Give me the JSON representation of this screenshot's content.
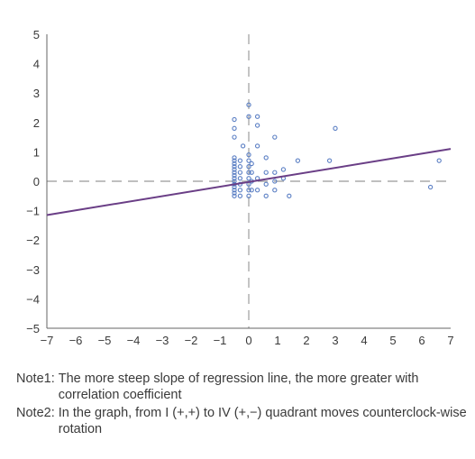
{
  "chart_data": {
    "type": "scatter",
    "title": "",
    "xlabel": "",
    "ylabel": "",
    "xlim": [
      -7,
      7
    ],
    "ylim": [
      -5,
      5
    ],
    "x_ticks": [
      "−7",
      "−6",
      "−5",
      "−4",
      "−3",
      "−2",
      "−1",
      "0",
      "1",
      "2",
      "3",
      "4",
      "5",
      "6",
      "7"
    ],
    "y_ticks": [
      "5",
      "4",
      "3",
      "2",
      "1",
      "0",
      "−1",
      "−2",
      "−3",
      "−4",
      "−5"
    ],
    "grid": false,
    "reference_lines": [
      {
        "orientation": "horizontal",
        "value": 0,
        "style": "dashed"
      },
      {
        "orientation": "vertical",
        "value": 0,
        "style": "dashed"
      }
    ],
    "regression_line": {
      "x": [
        -7,
        7
      ],
      "y": [
        -1.15,
        1.1
      ]
    },
    "colors": {
      "points": "#5b7fc4",
      "regression": "#6a3e86",
      "reference": "#aaaaaa",
      "axis": "#666666"
    },
    "points": [
      {
        "x": -0.5,
        "y": 2.1
      },
      {
        "x": -0.5,
        "y": 1.8
      },
      {
        "x": -0.5,
        "y": 1.5
      },
      {
        "x": -0.5,
        "y": 0.8
      },
      {
        "x": -0.5,
        "y": 0.7
      },
      {
        "x": -0.5,
        "y": 0.6
      },
      {
        "x": -0.5,
        "y": 0.5
      },
      {
        "x": -0.5,
        "y": 0.4
      },
      {
        "x": -0.5,
        "y": 0.3
      },
      {
        "x": -0.5,
        "y": 0.2
      },
      {
        "x": -0.5,
        "y": 0.1
      },
      {
        "x": -0.5,
        "y": 0.0
      },
      {
        "x": -0.5,
        "y": -0.1
      },
      {
        "x": -0.5,
        "y": -0.2
      },
      {
        "x": -0.5,
        "y": -0.3
      },
      {
        "x": -0.5,
        "y": -0.4
      },
      {
        "x": -0.5,
        "y": -0.5
      },
      {
        "x": -0.3,
        "y": 0.7
      },
      {
        "x": -0.3,
        "y": 0.5
      },
      {
        "x": -0.3,
        "y": 0.3
      },
      {
        "x": -0.3,
        "y": 0.1
      },
      {
        "x": -0.3,
        "y": -0.1
      },
      {
        "x": -0.3,
        "y": -0.3
      },
      {
        "x": -0.3,
        "y": -0.5
      },
      {
        "x": -0.2,
        "y": 1.2
      },
      {
        "x": 0.0,
        "y": 2.6
      },
      {
        "x": 0.0,
        "y": 2.2
      },
      {
        "x": 0.0,
        "y": 0.9
      },
      {
        "x": 0.0,
        "y": 0.7
      },
      {
        "x": 0.0,
        "y": 0.5
      },
      {
        "x": 0.0,
        "y": 0.3
      },
      {
        "x": 0.0,
        "y": 0.1
      },
      {
        "x": 0.0,
        "y": -0.1
      },
      {
        "x": 0.0,
        "y": -0.3
      },
      {
        "x": 0.0,
        "y": -0.5
      },
      {
        "x": 0.1,
        "y": 0.6
      },
      {
        "x": 0.1,
        "y": 0.3
      },
      {
        "x": 0.1,
        "y": 0.0
      },
      {
        "x": 0.1,
        "y": -0.3
      },
      {
        "x": 0.3,
        "y": 2.2
      },
      {
        "x": 0.3,
        "y": 1.9
      },
      {
        "x": 0.3,
        "y": 1.2
      },
      {
        "x": 0.3,
        "y": 0.1
      },
      {
        "x": 0.3,
        "y": -0.3
      },
      {
        "x": 0.6,
        "y": 0.8
      },
      {
        "x": 0.6,
        "y": 0.3
      },
      {
        "x": 0.6,
        "y": -0.1
      },
      {
        "x": 0.6,
        "y": -0.5
      },
      {
        "x": 0.9,
        "y": 1.5
      },
      {
        "x": 0.9,
        "y": 0.3
      },
      {
        "x": 0.9,
        "y": 0.0
      },
      {
        "x": 0.9,
        "y": -0.3
      },
      {
        "x": 1.2,
        "y": 0.4
      },
      {
        "x": 1.2,
        "y": 0.1
      },
      {
        "x": 1.4,
        "y": -0.5
      },
      {
        "x": 1.7,
        "y": 0.7
      },
      {
        "x": 2.8,
        "y": 0.7
      },
      {
        "x": 3.0,
        "y": 1.8
      },
      {
        "x": 6.3,
        "y": -0.2
      },
      {
        "x": 6.6,
        "y": 0.7
      }
    ]
  },
  "notes": [
    {
      "label": "Note1:",
      "text": "The more steep slope of regression line, the more greater with correlation coefficient"
    },
    {
      "label": "Note2:",
      "text": "In the graph, from I (+,+) to IV (+,−) quadrant moves counterclock-wise rotation"
    }
  ]
}
